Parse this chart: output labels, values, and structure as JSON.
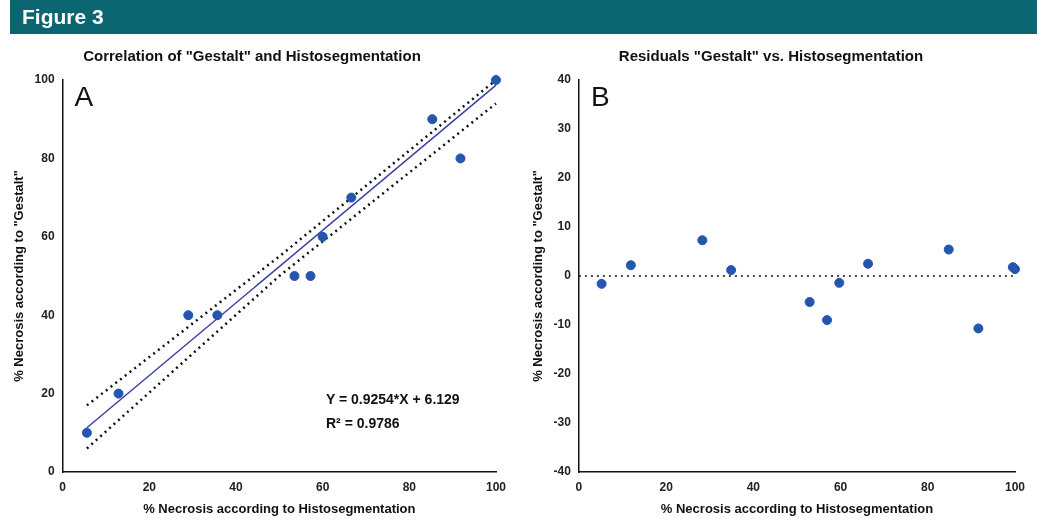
{
  "chart_data": [
    {
      "type": "other",
      "title": "Figure 3"
    },
    {
      "type": "scatter",
      "title": "Correlation of \"Gestalt\" and Histosegmentation",
      "xlabel": "% Necrosis according to Histosegmentation",
      "ylabel": "% Necrosis according to \"Gestalt\"",
      "xlim": [
        0,
        100
      ],
      "xticks": [
        0,
        20,
        40,
        60,
        80,
        100
      ],
      "ylim": [
        0,
        100
      ],
      "yticks": [
        0,
        20,
        40,
        60,
        80,
        100
      ],
      "grid": false,
      "legend": false,
      "annotations": [
        "A",
        "Y = 0.9254*X + 6.129",
        "R² = 0.9786"
      ],
      "series": [
        {
          "type": "scatter",
          "marker": "circle",
          "color": "#2456b0",
          "x": [
            5.6,
            12.9,
            29,
            35.7,
            53.5,
            57.2,
            60,
            66.6,
            85.3,
            91.8,
            100
          ],
          "values": [
            10,
            20,
            40,
            40,
            50,
            50,
            60,
            70,
            90,
            80,
            100
          ]
        },
        {
          "type": "line",
          "marker": "none",
          "line_style": "solid",
          "color": "#3b3fa6",
          "x": [
            5.6,
            50,
            100
          ],
          "values": [
            11.3,
            52.4,
            98.7
          ]
        },
        {
          "type": "line",
          "marker": "none",
          "line_style": "dotted",
          "color": "#111111",
          "x": [
            5.6,
            50,
            100
          ],
          "values": [
            6,
            50,
            94
          ]
        },
        {
          "type": "line",
          "marker": "none",
          "line_style": "dotted",
          "color": "#111111",
          "x": [
            5.6,
            50,
            100
          ],
          "values": [
            17,
            55,
            100
          ]
        }
      ]
    },
    {
      "type": "scatter",
      "title": "Residuals \"Gestalt\" vs. Histosegmentation",
      "xlabel": "% Necrosis according to Histosegmentation",
      "ylabel": "% Necrosis according to \"Gestalt\"",
      "xlim": [
        0,
        100
      ],
      "xticks": [
        0,
        20,
        40,
        60,
        80,
        100
      ],
      "ylim": [
        -40,
        40
      ],
      "yticks": [
        -40,
        -30,
        -20,
        -10,
        0,
        10,
        20,
        30,
        40
      ],
      "grid": false,
      "legend": false,
      "marker": "circle",
      "annotations": [
        "B"
      ],
      "ref_lines": [
        {
          "axis": "y",
          "value": 0,
          "line_style": "dotted"
        }
      ],
      "series": [
        {
          "type": "scatter",
          "color": "#2456b0",
          "x": [
            5.2,
            11.9,
            28.3,
            34.9,
            52.9,
            56.9,
            59.7,
            66.3,
            84.8,
            91.6,
            99.5,
            100
          ],
          "values": [
            -1.6,
            2.2,
            7.3,
            1.2,
            -5.3,
            -9,
            -1.4,
            2.5,
            5.4,
            -10.7,
            1.8,
            1.4
          ]
        }
      ]
    }
  ]
}
